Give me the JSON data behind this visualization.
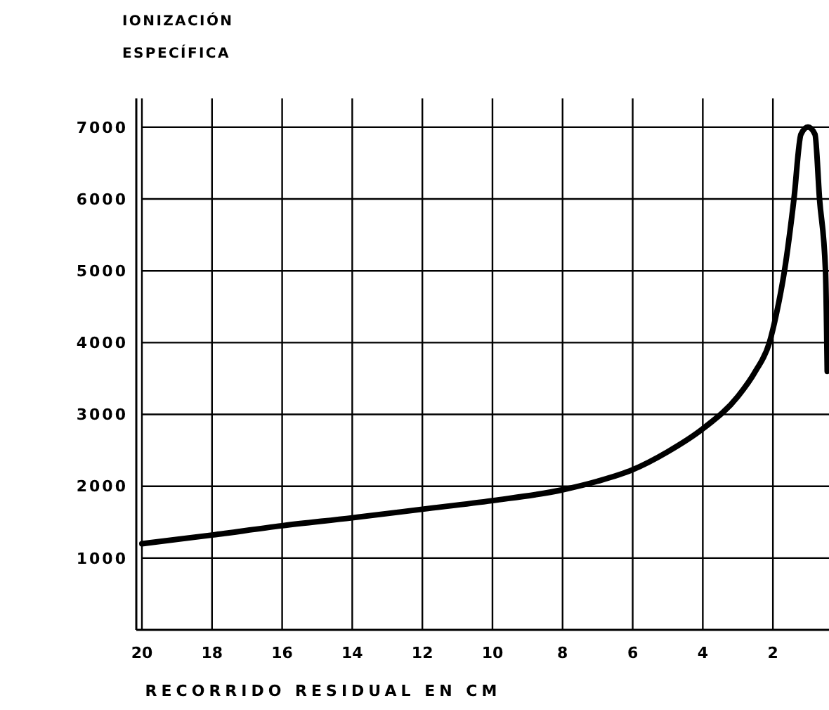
{
  "chart_data": {
    "type": "line",
    "ylabel": "IONIZACIÓN\nESPECÍFICA",
    "xlabel": "RECORRIDO RESIDUAL EN CM",
    "x": [
      20,
      18,
      16,
      14,
      12,
      10,
      8,
      7,
      6,
      5,
      4,
      3,
      2.5,
      2.1,
      1.9,
      1.67,
      1.4,
      1.2,
      1.0,
      0.8,
      0.67,
      0.5,
      0.45
    ],
    "series": [
      {
        "color": "#000000",
        "values": [
          1200,
          1320,
          1450,
          1560,
          1680,
          1800,
          1950,
          2070,
          2230,
          2480,
          2800,
          3250,
          3600,
          4000,
          4400,
          5000,
          6000,
          6900,
          7000,
          6900,
          6000,
          5000,
          3600
        ]
      }
    ],
    "xlim": [
      20,
      0.4
    ],
    "ylim": [
      0,
      7400
    ],
    "xticks": [
      20,
      18,
      16,
      14,
      12,
      10,
      8,
      6,
      4,
      2
    ],
    "yticks": [
      1000,
      2000,
      3000,
      4000,
      5000,
      6000,
      7000
    ],
    "grid": true,
    "marker": "none",
    "line_style": "solid"
  }
}
